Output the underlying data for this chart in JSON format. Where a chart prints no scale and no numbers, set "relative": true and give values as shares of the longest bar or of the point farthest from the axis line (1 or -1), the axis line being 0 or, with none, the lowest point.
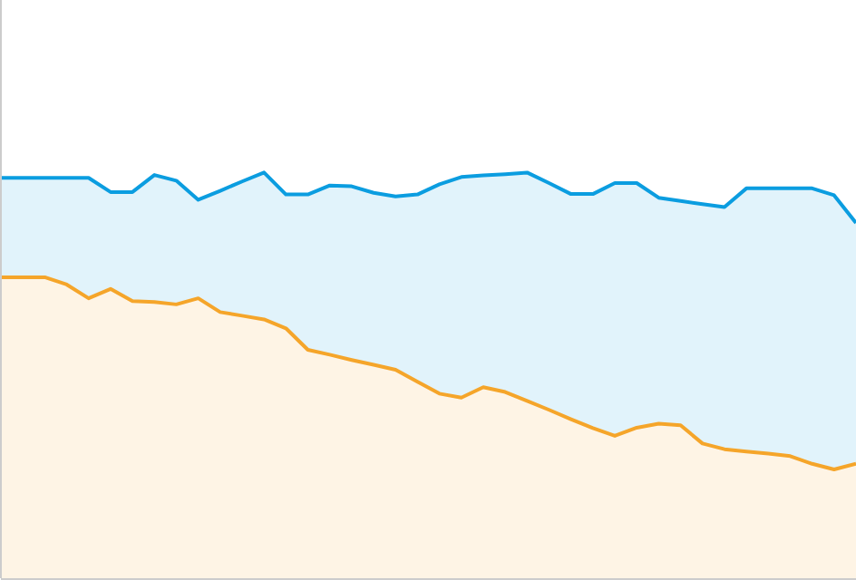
{
  "chart_data": {
    "type": "area",
    "relative": true,
    "categories": [
      null,
      null,
      null,
      null,
      null,
      null,
      null,
      null,
      null,
      null,
      null,
      null,
      null,
      null,
      null,
      null,
      null,
      null,
      null,
      null,
      null,
      null,
      null,
      null,
      null,
      null,
      null,
      null,
      null,
      null,
      null,
      null,
      null,
      null,
      null,
      null,
      null,
      null,
      null,
      null
    ],
    "series": [
      {
        "color": "#0b9de0",
        "values": [
          0.987,
          0.987,
          0.987,
          0.987,
          0.987,
          0.952,
          0.952,
          0.994,
          0.98,
          0.933,
          0.955,
          0.978,
          1,
          0.946,
          0.946,
          0.968,
          0.966,
          0.95,
          0.941,
          0.946,
          0.971,
          0.989,
          0.993,
          0.996,
          1,
          0.974,
          0.947,
          0.947,
          0.974,
          0.974,
          0.938,
          0.93,
          0.922,
          0.915,
          0.961,
          0.961,
          0.961,
          0.961,
          0.944,
          0.876
        ]
      },
      {
        "color": "#f5a52a",
        "values": [
          0.742,
          0.742,
          0.742,
          0.724,
          0.69,
          0.713,
          0.683,
          0.681,
          0.675,
          0.69,
          0.656,
          0.647,
          0.638,
          0.616,
          0.563,
          0.551,
          0.538,
          0.526,
          0.514,
          0.484,
          0.455,
          0.445,
          0.471,
          0.459,
          0.437,
          0.415,
          0.392,
          0.37,
          0.351,
          0.371,
          0.381,
          0.377,
          0.332,
          0.318,
          0.312,
          0.307,
          0.301,
          0.282,
          0.268,
          0.282
        ]
      }
    ]
  }
}
